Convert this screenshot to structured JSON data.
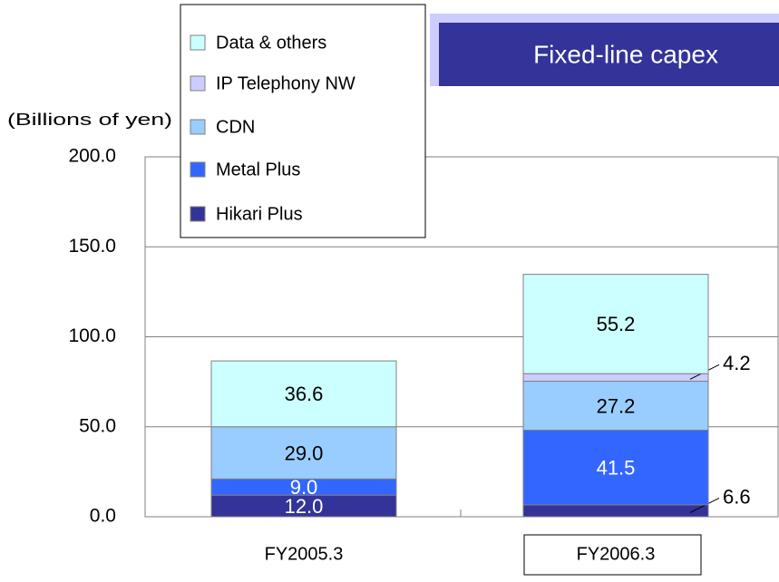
{
  "chart_data": {
    "type": "stacked-bar",
    "title": "Fixed-line capex",
    "y_label": "(Billions of yen)",
    "categories": [
      "FY2005.3",
      "FY2006.3"
    ],
    "series": [
      {
        "name": "Hikari Plus",
        "color": "#333399",
        "values": [
          12.0,
          6.6
        ],
        "value_labels": [
          "12.0",
          "6.6"
        ]
      },
      {
        "name": "Metal Plus",
        "color": "#3366ff",
        "values": [
          9.0,
          41.5
        ],
        "value_labels": [
          "9.0",
          "41.5"
        ]
      },
      {
        "name": "CDN",
        "color": "#99ccff",
        "values": [
          29.0,
          27.2
        ],
        "value_labels": [
          "29.0",
          "27.2"
        ]
      },
      {
        "name": "IP Telephony NW",
        "color": "#ccccff",
        "values": [
          null,
          4.2
        ],
        "value_labels": [
          null,
          "4.2"
        ]
      },
      {
        "name": "Data & others",
        "color": "#ccffff",
        "values": [
          36.6,
          55.2
        ],
        "value_labels": [
          "36.6",
          "55.2"
        ]
      }
    ],
    "ylim": [
      0,
      200
    ],
    "yticks": [
      {
        "value": 0,
        "label": "0.0"
      },
      {
        "value": 50,
        "label": "50.0"
      },
      {
        "value": 100,
        "label": "100.0"
      },
      {
        "value": 150,
        "label": "150.0"
      },
      {
        "value": 200,
        "label": "200.0"
      }
    ],
    "grid": true
  }
}
